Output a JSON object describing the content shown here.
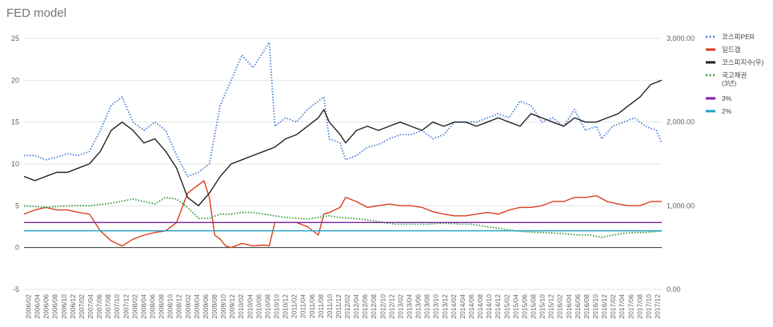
{
  "chart_data": {
    "type": "line",
    "title": "FED model",
    "left_axis": {
      "ticks": [
        "-5",
        "0",
        "5",
        "10",
        "15",
        "20",
        "25"
      ],
      "range": [
        -5,
        25
      ]
    },
    "right_axis": {
      "ticks": [
        "0.00",
        "1,000.00",
        "2,000.00",
        "3,000.00"
      ],
      "range": [
        0,
        3000
      ]
    },
    "x_ticks": [
      "2006/02",
      "2006/04",
      "2006/06",
      "2006/08",
      "2006/10",
      "2006/12",
      "2007/02",
      "2007/04",
      "2007/06",
      "2007/08",
      "2007/10",
      "2007/12",
      "2008/02",
      "2008/04",
      "2008/06",
      "2008/08",
      "2008/10",
      "2008/12",
      "2009/02",
      "2009/04",
      "2009/06",
      "2009/08",
      "2009/10",
      "2009/12",
      "2010/02",
      "2010/04",
      "2010/06",
      "2010/08",
      "2010/10",
      "2010/12",
      "2011/02",
      "2011/04",
      "2011/06",
      "2011/08",
      "2011/10",
      "2011/12",
      "2012/02",
      "2012/04",
      "2012/06",
      "2012/08",
      "2012/10",
      "2012/12",
      "2013/02",
      "2013/04",
      "2013/06",
      "2013/08",
      "2013/10",
      "2013/12",
      "2014/02",
      "2014/04",
      "2014/06",
      "2014/08",
      "2014/10",
      "2014/12",
      "2015/02",
      "2015/04",
      "2015/06",
      "2015/08",
      "2015/10",
      "2015/12",
      "2016/02",
      "2016/04",
      "2016/06",
      "2016/08",
      "2016/10",
      "2016/12",
      "2017/02",
      "2017/04",
      "2017/06",
      "2017/08",
      "2017/10",
      "2017/12"
    ],
    "legend_position": "right",
    "grid": true,
    "series": [
      {
        "name": "코스피PER",
        "axis": "left",
        "color": "#4a7fd6",
        "style": "dotted",
        "points": [
          [
            0,
            11
          ],
          [
            2,
            11
          ],
          [
            4,
            10.5
          ],
          [
            6,
            10.8
          ],
          [
            8,
            11.2
          ],
          [
            10,
            11
          ],
          [
            12,
            11.5
          ],
          [
            14,
            14
          ],
          [
            16,
            17
          ],
          [
            18,
            18
          ],
          [
            20,
            15
          ],
          [
            22,
            14
          ],
          [
            24,
            15
          ],
          [
            26,
            14
          ],
          [
            28,
            11
          ],
          [
            30,
            8.5
          ],
          [
            32,
            9
          ],
          [
            34,
            10
          ],
          [
            36,
            17
          ],
          [
            38,
            20
          ],
          [
            40,
            23
          ],
          [
            42,
            21.5
          ],
          [
            44,
            23.5
          ],
          [
            45,
            24.5
          ],
          [
            46,
            14.5
          ],
          [
            48,
            15.5
          ],
          [
            50,
            15
          ],
          [
            52,
            16.5
          ],
          [
            54,
            17.5
          ],
          [
            55,
            18
          ],
          [
            56,
            13
          ],
          [
            58,
            12.5
          ],
          [
            59,
            10.5
          ],
          [
            61,
            11
          ],
          [
            63,
            12
          ],
          [
            65,
            12.3
          ],
          [
            67,
            13
          ],
          [
            69,
            13.5
          ],
          [
            71,
            13.5
          ],
          [
            73,
            14
          ],
          [
            75,
            13
          ],
          [
            77,
            13.5
          ],
          [
            79,
            15
          ],
          [
            81,
            15
          ],
          [
            83,
            15
          ],
          [
            85,
            15.5
          ],
          [
            87,
            16
          ],
          [
            89,
            15.5
          ],
          [
            91,
            17.5
          ],
          [
            93,
            17
          ],
          [
            95,
            15
          ],
          [
            97,
            15.5
          ],
          [
            99,
            14.5
          ],
          [
            101,
            16.5
          ],
          [
            103,
            14
          ],
          [
            105,
            14.5
          ],
          [
            106,
            13
          ],
          [
            108,
            14.5
          ],
          [
            110,
            15
          ],
          [
            112,
            15.5
          ],
          [
            114,
            14.5
          ],
          [
            116,
            14
          ],
          [
            117,
            12.5
          ]
        ]
      },
      {
        "name": "일드갭",
        "axis": "left",
        "color": "#d93f1c",
        "style": "solid",
        "points": [
          [
            0,
            4
          ],
          [
            2,
            4.5
          ],
          [
            4,
            4.8
          ],
          [
            6,
            4.5
          ],
          [
            8,
            4.5
          ],
          [
            10,
            4.2
          ],
          [
            12,
            4
          ],
          [
            14,
            2
          ],
          [
            16,
            0.8
          ],
          [
            18,
            0.2
          ],
          [
            20,
            1
          ],
          [
            22,
            1.5
          ],
          [
            24,
            1.8
          ],
          [
            26,
            2
          ],
          [
            28,
            3
          ],
          [
            30,
            6.5
          ],
          [
            32,
            7.5
          ],
          [
            33,
            8
          ],
          [
            34,
            6
          ],
          [
            35,
            1.5
          ],
          [
            36,
            1
          ],
          [
            37,
            0.2
          ],
          [
            38,
            0
          ],
          [
            40,
            0.5
          ],
          [
            42,
            0.2
          ],
          [
            44,
            0.3
          ],
          [
            45,
            0.2
          ],
          [
            46,
            3
          ],
          [
            48,
            3
          ],
          [
            50,
            3
          ],
          [
            52,
            2.5
          ],
          [
            54,
            1.5
          ],
          [
            55,
            4
          ],
          [
            56,
            4.2
          ],
          [
            58,
            4.8
          ],
          [
            59,
            6
          ],
          [
            61,
            5.5
          ],
          [
            63,
            4.8
          ],
          [
            65,
            5
          ],
          [
            67,
            5.2
          ],
          [
            69,
            5
          ],
          [
            71,
            5
          ],
          [
            73,
            4.8
          ],
          [
            75,
            4.3
          ],
          [
            77,
            4
          ],
          [
            79,
            3.8
          ],
          [
            81,
            3.8
          ],
          [
            83,
            4
          ],
          [
            85,
            4.2
          ],
          [
            87,
            4
          ],
          [
            89,
            4.5
          ],
          [
            91,
            4.8
          ],
          [
            93,
            4.8
          ],
          [
            95,
            5
          ],
          [
            97,
            5.5
          ],
          [
            99,
            5.5
          ],
          [
            101,
            6
          ],
          [
            103,
            6
          ],
          [
            105,
            6.2
          ],
          [
            107,
            5.5
          ],
          [
            109,
            5.2
          ],
          [
            111,
            5
          ],
          [
            113,
            5
          ],
          [
            115,
            5.5
          ],
          [
            117,
            5.5
          ]
        ]
      },
      {
        "name": "코스피지수(우)",
        "axis": "right",
        "color": "#222222",
        "style": "solid",
        "points": [
          [
            0,
            1350
          ],
          [
            2,
            1300
          ],
          [
            4,
            1350
          ],
          [
            6,
            1400
          ],
          [
            8,
            1400
          ],
          [
            10,
            1450
          ],
          [
            12,
            1500
          ],
          [
            14,
            1650
          ],
          [
            16,
            1900
          ],
          [
            18,
            2000
          ],
          [
            20,
            1900
          ],
          [
            22,
            1750
          ],
          [
            24,
            1800
          ],
          [
            26,
            1650
          ],
          [
            28,
            1450
          ],
          [
            30,
            1100
          ],
          [
            32,
            1000
          ],
          [
            34,
            1150
          ],
          [
            36,
            1350
          ],
          [
            38,
            1500
          ],
          [
            40,
            1550
          ],
          [
            42,
            1600
          ],
          [
            44,
            1650
          ],
          [
            46,
            1700
          ],
          [
            48,
            1800
          ],
          [
            50,
            1850
          ],
          [
            52,
            1950
          ],
          [
            54,
            2050
          ],
          [
            55,
            2150
          ],
          [
            56,
            2000
          ],
          [
            58,
            1850
          ],
          [
            59,
            1750
          ],
          [
            61,
            1900
          ],
          [
            63,
            1950
          ],
          [
            65,
            1900
          ],
          [
            67,
            1950
          ],
          [
            69,
            2000
          ],
          [
            71,
            1950
          ],
          [
            73,
            1900
          ],
          [
            75,
            2000
          ],
          [
            77,
            1950
          ],
          [
            79,
            2000
          ],
          [
            81,
            2000
          ],
          [
            83,
            1950
          ],
          [
            85,
            2000
          ],
          [
            87,
            2050
          ],
          [
            89,
            2000
          ],
          [
            91,
            1950
          ],
          [
            93,
            2100
          ],
          [
            95,
            2050
          ],
          [
            97,
            2000
          ],
          [
            99,
            1950
          ],
          [
            101,
            2050
          ],
          [
            103,
            2000
          ],
          [
            105,
            2000
          ],
          [
            107,
            2050
          ],
          [
            109,
            2100
          ],
          [
            111,
            2200
          ],
          [
            113,
            2300
          ],
          [
            115,
            2450
          ],
          [
            117,
            2500
          ]
        ]
      },
      {
        "name": "국고채권(3년)",
        "axis": "left",
        "color": "#2e9c3a",
        "style": "dotted",
        "points": [
          [
            0,
            5
          ],
          [
            4,
            4.8
          ],
          [
            8,
            5
          ],
          [
            12,
            5
          ],
          [
            16,
            5.3
          ],
          [
            20,
            5.8
          ],
          [
            22,
            5.5
          ],
          [
            24,
            5.2
          ],
          [
            26,
            6
          ],
          [
            28,
            5.8
          ],
          [
            30,
            4.8
          ],
          [
            32,
            3.5
          ],
          [
            34,
            3.5
          ],
          [
            36,
            4
          ],
          [
            38,
            4
          ],
          [
            40,
            4.2
          ],
          [
            42,
            4.2
          ],
          [
            44,
            4
          ],
          [
            46,
            3.8
          ],
          [
            48,
            3.6
          ],
          [
            50,
            3.5
          ],
          [
            52,
            3.4
          ],
          [
            54,
            3.6
          ],
          [
            56,
            3.8
          ],
          [
            58,
            3.6
          ],
          [
            60,
            3.5
          ],
          [
            62,
            3.4
          ],
          [
            64,
            3.2
          ],
          [
            66,
            3
          ],
          [
            68,
            2.8
          ],
          [
            70,
            2.8
          ],
          [
            72,
            2.8
          ],
          [
            74,
            2.8
          ],
          [
            76,
            2.9
          ],
          [
            78,
            2.9
          ],
          [
            80,
            2.8
          ],
          [
            82,
            2.8
          ],
          [
            84,
            2.6
          ],
          [
            86,
            2.4
          ],
          [
            88,
            2.2
          ],
          [
            90,
            2
          ],
          [
            92,
            1.9
          ],
          [
            94,
            1.8
          ],
          [
            96,
            1.8
          ],
          [
            98,
            1.7
          ],
          [
            100,
            1.6
          ],
          [
            102,
            1.5
          ],
          [
            104,
            1.5
          ],
          [
            106,
            1.2
          ],
          [
            108,
            1.5
          ],
          [
            110,
            1.7
          ],
          [
            112,
            1.8
          ],
          [
            114,
            1.8
          ],
          [
            117,
            2
          ]
        ]
      },
      {
        "name": "3%",
        "axis": "left",
        "color": "#7b1fa2",
        "style": "solid",
        "points": [
          [
            0,
            3
          ],
          [
            117,
            3
          ]
        ]
      },
      {
        "name": "2%",
        "axis": "left",
        "color": "#1fa2c9",
        "style": "solid",
        "points": [
          [
            0,
            2
          ],
          [
            117,
            2
          ]
        ]
      }
    ]
  }
}
